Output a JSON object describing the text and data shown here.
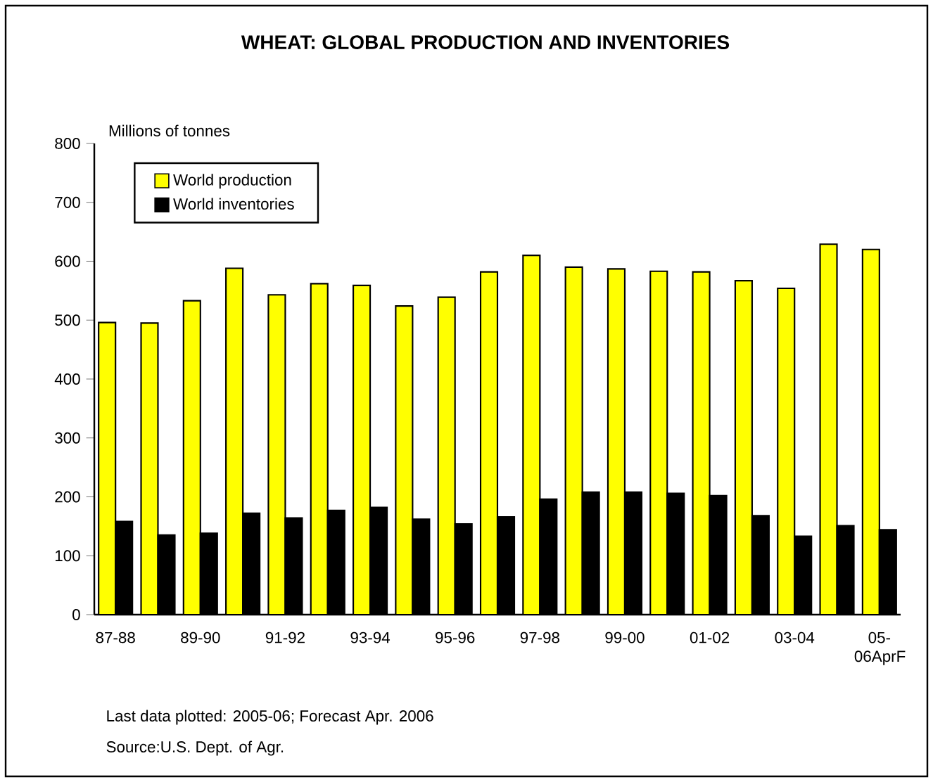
{
  "chart_data": {
    "type": "bar",
    "title": "WHEAT: GLOBAL PRODUCTION AND INVENTORIES",
    "ylabel": "Millions of tonnes",
    "categories": [
      "87-88",
      null,
      "89-90",
      null,
      "91-92",
      null,
      "93-94",
      null,
      "95-96",
      null,
      "97-98",
      null,
      "99-00",
      null,
      "01-02",
      null,
      "03-04",
      null,
      "05-06AprF"
    ],
    "series": [
      {
        "name": "World production",
        "color": "#ffff00",
        "values": [
          496,
          495,
          533,
          588,
          543,
          562,
          559,
          524,
          539,
          582,
          610,
          590,
          587,
          583,
          582,
          567,
          554,
          629,
          620
        ]
      },
      {
        "name": "World inventories",
        "color": "#000000",
        "values": [
          158,
          135,
          138,
          172,
          164,
          177,
          182,
          162,
          154,
          166,
          196,
          208,
          208,
          206,
          202,
          168,
          133,
          151,
          144
        ]
      }
    ],
    "ylim": [
      0,
      800
    ],
    "yticks": [
      0,
      100,
      200,
      300,
      400,
      500,
      600,
      700,
      800
    ],
    "grid": false,
    "legend": "top left",
    "annotations": [
      "Last data plotted: 2005-06; Forecast Apr. 2006",
      "Source:U.S. Dept. of Agr."
    ]
  }
}
